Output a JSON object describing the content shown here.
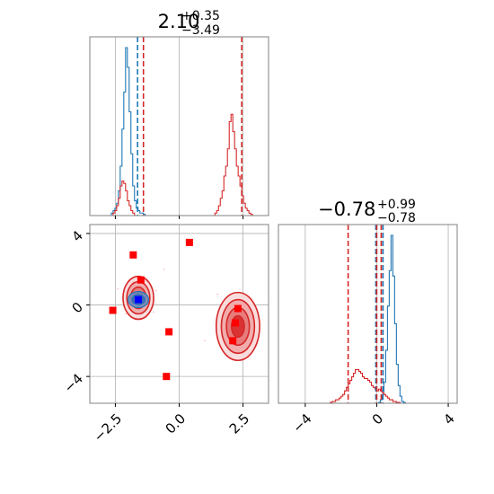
{
  "chart_data": [
    {
      "type": "histogram",
      "panel": "x1 marginal (top-left)",
      "title": {
        "value": "2.10",
        "plus": "+0.35",
        "minus": "−3.49"
      },
      "x_range": [
        -3.5,
        3.5
      ],
      "shared_xticks": [
        "−2.5",
        "0.0",
        "2.5"
      ],
      "series": [
        {
          "color": "#1f77b4",
          "bins_start": -3.5,
          "bin_width": 0.07,
          "heights": [
            0,
            0,
            0,
            0,
            0,
            0,
            0,
            0,
            0,
            0,
            0,
            0,
            0.01,
            0.02,
            0.03,
            0.05,
            0.1,
            0.2,
            0.35,
            0.5,
            0.68,
            0.6,
            0.42,
            0.25,
            0.12,
            0.06,
            0.03,
            0.02,
            0.01,
            0.01,
            0.005,
            0,
            0,
            0,
            0,
            0,
            0,
            0,
            0,
            0,
            0,
            0,
            0,
            0,
            0,
            0,
            0,
            0,
            0,
            0,
            0,
            0,
            0,
            0,
            0,
            0,
            0,
            0,
            0,
            0,
            0,
            0,
            0,
            0,
            0,
            0,
            0,
            0,
            0,
            0,
            0,
            0,
            0,
            0,
            0,
            0,
            0,
            0,
            0,
            0,
            0,
            0,
            0,
            0,
            0,
            0,
            0,
            0,
            0,
            0,
            0,
            0,
            0,
            0,
            0,
            0,
            0,
            0,
            0,
            0
          ]
        },
        {
          "color": "#d62728",
          "bins_start": -3.5,
          "bin_width": 0.07,
          "heights": [
            0,
            0,
            0,
            0,
            0,
            0,
            0,
            0,
            0,
            0,
            0,
            0,
            0,
            0.01,
            0.02,
            0.04,
            0.07,
            0.12,
            0.14,
            0.13,
            0.1,
            0.06,
            0.04,
            0.02,
            0.01,
            0,
            0,
            0,
            0,
            0,
            0,
            0,
            0,
            0,
            0,
            0,
            0,
            0,
            0,
            0,
            0,
            0,
            0,
            0,
            0,
            0,
            0,
            0,
            0,
            0,
            0,
            0,
            0,
            0,
            0,
            0,
            0,
            0,
            0,
            0,
            0,
            0,
            0,
            0,
            0,
            0,
            0,
            0,
            0,
            0,
            0.01,
            0.02,
            0.04,
            0.07,
            0.1,
            0.16,
            0.2,
            0.27,
            0.38,
            0.41,
            0.34,
            0.27,
            0.2,
            0.16,
            0.12,
            0.08,
            0.05,
            0.03,
            0.02,
            0.01,
            0.005,
            0,
            0,
            0,
            0,
            0,
            0,
            0,
            0,
            0
          ]
        }
      ],
      "vlines_blue": [
        -1.63
      ],
      "vlines_red": [
        -1.4,
        2.45
      ]
    },
    {
      "type": "histogram",
      "panel": "x2 marginal (bottom-right)",
      "title": {
        "value": "−0.78",
        "plus": "+0.99",
        "minus": "−0.78"
      },
      "x_range": [
        -5.5,
        4.5
      ],
      "xticks": [
        "−4",
        "0",
        "4"
      ],
      "series": [
        {
          "color": "#1f77b4",
          "bins_start": -5.5,
          "bin_width": 0.1,
          "heights": [
            0,
            0,
            0,
            0,
            0,
            0,
            0,
            0,
            0,
            0,
            0,
            0,
            0,
            0,
            0,
            0,
            0,
            0,
            0,
            0,
            0,
            0,
            0,
            0,
            0,
            0,
            0,
            0,
            0,
            0,
            0,
            0,
            0,
            0,
            0,
            0,
            0,
            0,
            0,
            0,
            0,
            0,
            0,
            0,
            0,
            0,
            0,
            0,
            0,
            0,
            0,
            0,
            0,
            0,
            0,
            0,
            0.005,
            0.02,
            0.05,
            0.12,
            0.3,
            0.55,
            0.75,
            0.95,
            0.72,
            0.45,
            0.22,
            0.1,
            0.04,
            0.01,
            0.005,
            0,
            0,
            0,
            0,
            0,
            0,
            0,
            0,
            0,
            0,
            0,
            0,
            0,
            0,
            0,
            0,
            0,
            0,
            0,
            0,
            0,
            0,
            0,
            0,
            0,
            0,
            0,
            0,
            0
          ]
        },
        {
          "color": "#d62728",
          "bins_start": -5.5,
          "bin_width": 0.1,
          "heights": [
            0,
            0,
            0,
            0,
            0,
            0,
            0,
            0,
            0,
            0,
            0,
            0,
            0,
            0,
            0,
            0,
            0,
            0,
            0,
            0,
            0,
            0,
            0,
            0,
            0,
            0,
            0,
            0,
            0,
            0.005,
            0.01,
            0.01,
            0.02,
            0.02,
            0.03,
            0.04,
            0.05,
            0.07,
            0.09,
            0.11,
            0.13,
            0.15,
            0.17,
            0.19,
            0.19,
            0.18,
            0.17,
            0.15,
            0.14,
            0.14,
            0.13,
            0.12,
            0.1,
            0.09,
            0.08,
            0.07,
            0.08,
            0.07,
            0.06,
            0.05,
            0.04,
            0.03,
            0.02,
            0.02,
            0.01,
            0.01,
            0.005,
            0.005,
            0,
            0,
            0,
            0,
            0,
            0,
            0,
            0,
            0,
            0,
            0,
            0,
            0,
            0,
            0,
            0,
            0,
            0,
            0,
            0,
            0,
            0,
            0,
            0,
            0,
            0,
            0,
            0,
            0,
            0,
            0,
            0
          ]
        }
      ],
      "vlines_blue": [
        -0.05,
        0.35
      ],
      "vlines_red": [
        -1.6,
        0.0,
        0.25
      ]
    },
    {
      "type": "contour_scatter",
      "panel": "x1 vs x2 joint (bottom-left)",
      "x_range": [
        -3.5,
        3.5
      ],
      "y_range": [
        -5.5,
        4.5
      ],
      "xticks": [
        "−2.5",
        "0.0",
        "2.5"
      ],
      "yticks": [
        "−4",
        "0",
        "4"
      ],
      "contours_red": [
        {
          "center": [
            -1.6,
            0.4
          ],
          "radii_levels": [
            [
              0.6,
              1.2
            ],
            [
              0.45,
              0.9
            ],
            [
              0.3,
              0.6
            ],
            [
              0.18,
              0.35
            ]
          ]
        },
        {
          "center": [
            2.3,
            -1.2
          ],
          "radii_levels": [
            [
              0.85,
              1.9
            ],
            [
              0.65,
              1.5
            ],
            [
              0.45,
              1.05
            ],
            [
              0.25,
              0.6
            ]
          ]
        }
      ],
      "contours_blue": [
        {
          "center": [
            -1.6,
            0.3
          ],
          "radii_levels": [
            [
              0.4,
              0.45
            ],
            [
              0.25,
              0.28
            ]
          ]
        }
      ],
      "markers_red": [
        [
          -1.8,
          2.8
        ],
        [
          -1.5,
          1.4
        ],
        [
          -2.6,
          -0.3
        ],
        [
          -0.4,
          -1.5
        ],
        [
          -0.5,
          -4.0
        ],
        [
          0.4,
          3.5
        ],
        [
          2.2,
          -1.0
        ],
        [
          2.3,
          -0.2
        ],
        [
          2.1,
          -2.0
        ]
      ],
      "markers_blue": [
        [
          -1.6,
          0.3
        ]
      ]
    }
  ]
}
